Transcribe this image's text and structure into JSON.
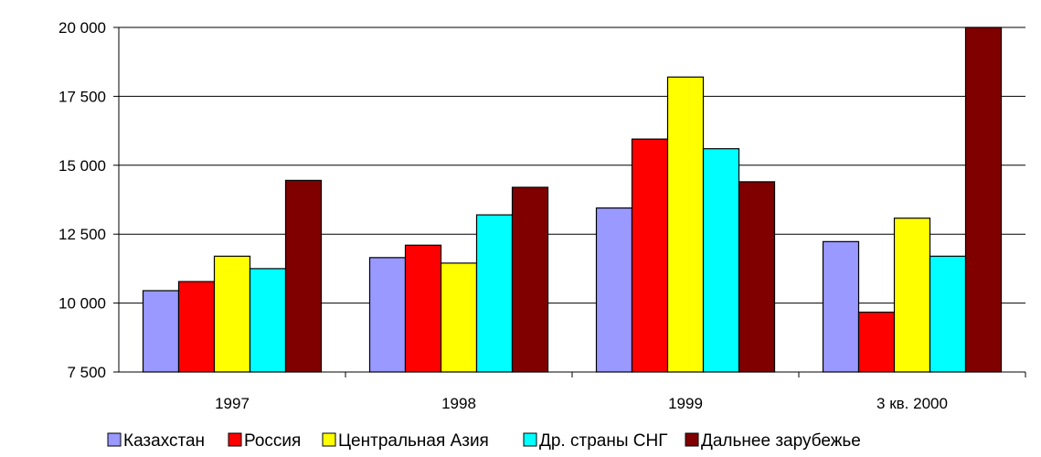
{
  "chart_data": {
    "type": "bar",
    "title": "",
    "xlabel": "",
    "ylabel": "",
    "ylim": [
      7500,
      20000
    ],
    "yticks": [
      7500,
      10000,
      12500,
      15000,
      17500,
      20000
    ],
    "ytick_labels": [
      "7 500",
      "10 000",
      "12 500",
      "15 000",
      "17 500",
      "20 000"
    ],
    "categories": [
      "1997",
      "1998",
      "1999",
      "3 кв. 2000"
    ],
    "grid": "horizontal",
    "legend_placement": "bottom",
    "series": [
      {
        "name": "Казахстан",
        "color": "#9999FF",
        "values": [
          10450,
          11650,
          13450,
          12230
        ]
      },
      {
        "name": "Россия",
        "color": "#FF0000",
        "values": [
          10780,
          12100,
          15950,
          9670
        ]
      },
      {
        "name": "Центральная Азия",
        "color": "#FFFF00",
        "values": [
          11700,
          11450,
          18200,
          13080
        ]
      },
      {
        "name": "Др. страны СНГ",
        "color": "#00FFFF",
        "values": [
          11250,
          13200,
          15600,
          11700
        ]
      },
      {
        "name": "Дальнее зарубежье",
        "color": "#800000",
        "values": [
          14450,
          14200,
          14400,
          20000
        ]
      }
    ]
  }
}
